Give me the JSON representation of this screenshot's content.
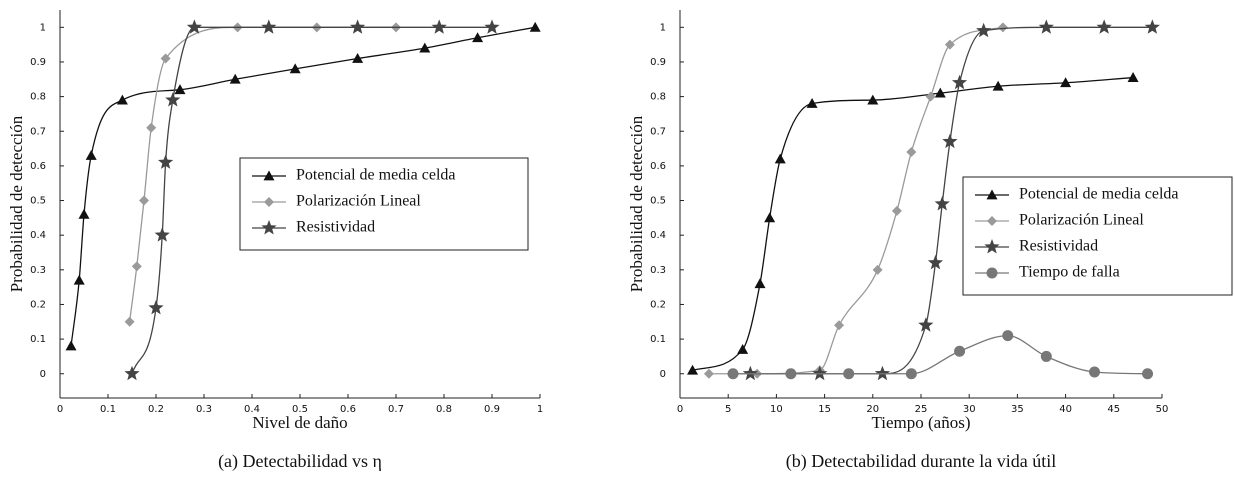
{
  "chart_data": [
    {
      "type": "line",
      "caption": "(a) Detectabilidad vs η",
      "xlabel": "Nivel de daño",
      "ylabel": "Probabilidad de detección",
      "xlim": [
        0,
        1
      ],
      "ylim": [
        -0.07,
        1.05
      ],
      "xticks": [
        0,
        0.1,
        0.2,
        0.3,
        0.4,
        0.5,
        0.6,
        0.7,
        0.8,
        0.9,
        1
      ],
      "yticks": [
        0,
        0.1,
        0.2,
        0.3,
        0.4,
        0.5,
        0.6,
        0.7,
        0.8,
        0.9,
        1
      ],
      "series": [
        {
          "name": "Potencial de media celda",
          "color": "#111111",
          "marker": "triangle",
          "x": [
            0.023,
            0.04,
            0.05,
            0.065,
            0.13,
            0.25,
            0.365,
            0.49,
            0.62,
            0.76,
            0.87,
            0.99
          ],
          "values": [
            0.08,
            0.27,
            0.46,
            0.63,
            0.79,
            0.82,
            0.85,
            0.88,
            0.91,
            0.94,
            0.97,
            1.0
          ]
        },
        {
          "name": "Polarización Lineal",
          "color": "#9a9a9a",
          "marker": "diamond",
          "x": [
            0.145,
            0.16,
            0.175,
            0.19,
            0.22,
            0.37,
            0.535,
            0.7
          ],
          "values": [
            0.15,
            0.31,
            0.5,
            0.71,
            0.91,
            1.0,
            1.0,
            1.0
          ]
        },
        {
          "name": "Resistividad",
          "color": "#444444",
          "marker": "star",
          "x": [
            0.15,
            0.2,
            0.213,
            0.22,
            0.235,
            0.28,
            0.435,
            0.62,
            0.79,
            0.9
          ],
          "values": [
            0,
            0.19,
            0.4,
            0.61,
            0.79,
            1.0,
            1.0,
            1.0,
            1.0,
            1.0
          ]
        }
      ]
    },
    {
      "type": "line",
      "caption": "(b) Detectabilidad durante la vida útil",
      "xlabel": "Tiempo (años)",
      "ylabel": "Probabilidad de detección",
      "xlim": [
        0,
        50
      ],
      "ylim": [
        -0.07,
        1.05
      ],
      "xticks": [
        0,
        5,
        10,
        15,
        20,
        25,
        30,
        35,
        40,
        45,
        50
      ],
      "yticks": [
        0,
        0.1,
        0.2,
        0.3,
        0.4,
        0.5,
        0.6,
        0.7,
        0.8,
        0.9,
        1
      ],
      "series": [
        {
          "name": "Potencial de media celda",
          "color": "#111111",
          "marker": "triangle",
          "x": [
            1.3,
            6.5,
            8.3,
            9.3,
            10.4,
            13.7,
            20,
            27,
            33,
            40,
            47
          ],
          "values": [
            0.01,
            0.07,
            0.26,
            0.45,
            0.62,
            0.78,
            0.79,
            0.81,
            0.83,
            0.84,
            0.855
          ]
        },
        {
          "name": "Polarización Lineal",
          "color": "#9a9a9a",
          "marker": "diamond",
          "x": [
            3,
            8,
            14.5,
            16.5,
            20.5,
            22.5,
            24,
            26,
            28,
            33.5
          ],
          "values": [
            0,
            0,
            0.01,
            0.14,
            0.3,
            0.47,
            0.64,
            0.8,
            0.95,
            1.0
          ]
        },
        {
          "name": "Resistividad",
          "color": "#444444",
          "marker": "star",
          "x": [
            7.3,
            14.5,
            21,
            25.5,
            26.5,
            27.2,
            28,
            29,
            31.5,
            38,
            44,
            49
          ],
          "values": [
            0,
            0,
            0,
            0.14,
            0.32,
            0.49,
            0.67,
            0.84,
            0.99,
            1.0,
            1.0,
            1.0
          ]
        },
        {
          "name": "Tiempo de falla",
          "color": "#777777",
          "marker": "circle",
          "x": [
            5.5,
            11.5,
            17.5,
            24,
            29,
            34,
            38,
            43,
            48.5
          ],
          "values": [
            0,
            0,
            0,
            0,
            0.065,
            0.11,
            0.05,
            0.005,
            0
          ]
        }
      ]
    }
  ]
}
